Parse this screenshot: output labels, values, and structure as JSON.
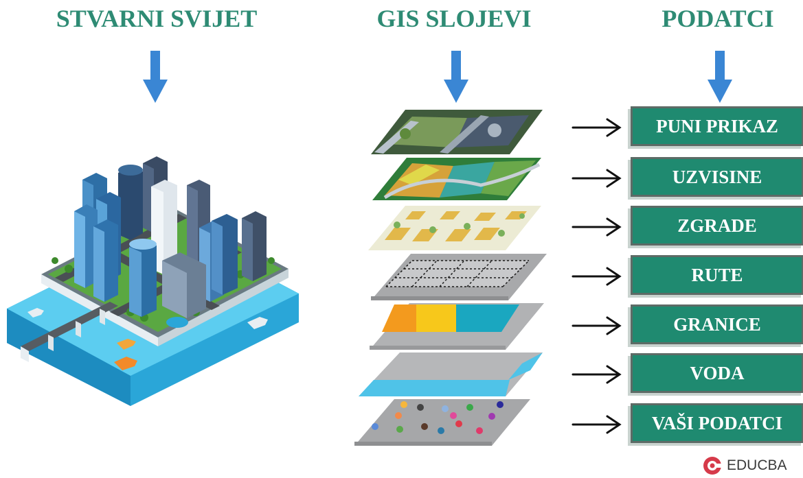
{
  "titles": {
    "real_world": "STVARNI SVIJET",
    "gis_layers": "GIS SLOJEVI",
    "data": "PODATCI"
  },
  "layers": [
    {
      "label": "PUNI PRIKAZ"
    },
    {
      "label": "UZVISINE"
    },
    {
      "label": "ZGRADE"
    },
    {
      "label": "RUTE"
    },
    {
      "label": "GRANICE"
    },
    {
      "label": "VODA"
    },
    {
      "label": "VAŠI PODATCI"
    }
  ],
  "logo": {
    "text": "EDUCBA"
  },
  "colors": {
    "title": "#2e8b74",
    "box": "#1f8a70",
    "arrow_blue": "#3a86d4",
    "water": "#4fc3e8",
    "boundary_orange": "#f39a1e",
    "boundary_yellow": "#f7c81b",
    "boundary_teal": "#1aa7c0",
    "logo_accent": "#d63a4a"
  },
  "icons": [
    "down-arrow-icon",
    "right-arrow-icon",
    "educba-logo-icon"
  ]
}
